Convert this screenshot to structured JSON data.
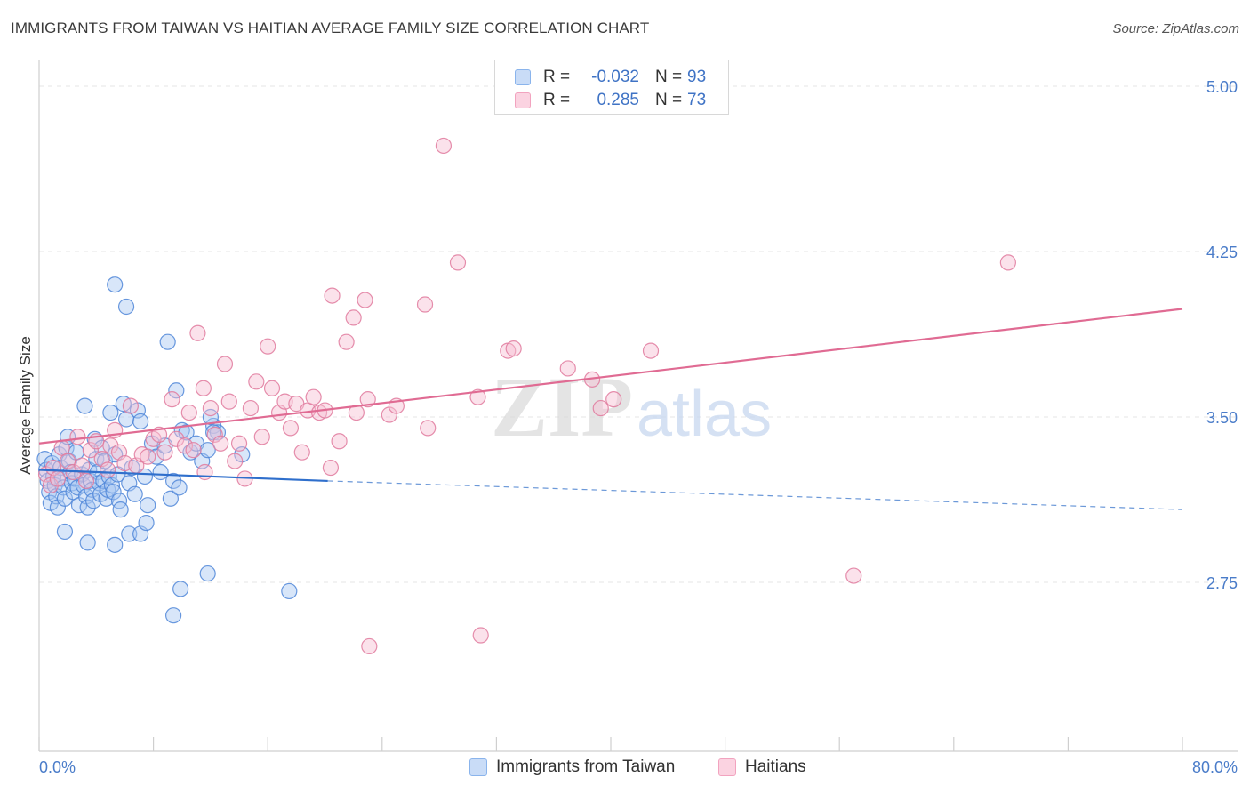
{
  "title": "IMMIGRANTS FROM TAIWAN VS HAITIAN AVERAGE FAMILY SIZE CORRELATION CHART",
  "source": "Source: ZipAtlas.com",
  "watermark": {
    "zip": "ZIP",
    "atlas": "atlas"
  },
  "legend": {
    "r_label": "R =",
    "n_label": "N =",
    "rows": [
      {
        "r": "-0.032",
        "n": "93",
        "color": "#8ab4ec",
        "fill": "#c9dcf7"
      },
      {
        "r": "0.285",
        "n": "73",
        "color": "#f2a3bf",
        "fill": "#fbd3e1"
      }
    ]
  },
  "bottom_legend": [
    {
      "label": "Immigrants from Taiwan",
      "color": "#8ab4ec",
      "fill": "#c9dcf7"
    },
    {
      "label": "Haitians",
      "color": "#f2a3bf",
      "fill": "#fbd3e1"
    }
  ],
  "chart_data": {
    "type": "scatter",
    "title": "IMMIGRANTS FROM TAIWAN VS HAITIAN AVERAGE FAMILY SIZE CORRELATION CHART",
    "xlabel": "",
    "ylabel": "Average Family Size",
    "xlim": [
      0,
      80
    ],
    "ylim": [
      2.2,
      5.1
    ],
    "x_tick_labels": [
      "0.0%",
      "80.0%"
    ],
    "y_ticks": [
      2.75,
      3.5,
      4.25,
      5.0
    ],
    "y_tick_labels": [
      "2.75",
      "3.50",
      "4.25",
      "5.00"
    ],
    "grid": true,
    "legend_placement": "top-center",
    "series": [
      {
        "name": "Immigrants from Taiwan",
        "color": "#4f86d8",
        "fill": "#a9c8f2",
        "trend": {
          "x": [
            0,
            20.2
          ],
          "y": [
            3.26,
            3.21
          ],
          "dashed_to": [
            80,
            3.08
          ]
        },
        "points": [
          [
            0.4,
            3.31
          ],
          [
            0.5,
            3.26
          ],
          [
            0.6,
            3.21
          ],
          [
            0.7,
            3.16
          ],
          [
            0.8,
            3.11
          ],
          [
            0.9,
            3.29
          ],
          [
            1.0,
            3.23
          ],
          [
            1.1,
            3.19
          ],
          [
            1.2,
            3.14
          ],
          [
            1.3,
            3.09
          ],
          [
            1.4,
            3.33
          ],
          [
            1.5,
            3.27
          ],
          [
            1.6,
            3.22
          ],
          [
            1.7,
            3.18
          ],
          [
            1.8,
            3.13
          ],
          [
            1.9,
            3.36
          ],
          [
            2.0,
            3.41
          ],
          [
            2.1,
            3.3
          ],
          [
            2.2,
            3.25
          ],
          [
            2.3,
            3.2
          ],
          [
            2.4,
            3.16
          ],
          [
            2.5,
            3.22
          ],
          [
            2.6,
            3.34
          ],
          [
            2.7,
            3.18
          ],
          [
            2.8,
            3.1
          ],
          [
            3.0,
            3.24
          ],
          [
            3.1,
            3.19
          ],
          [
            3.2,
            3.55
          ],
          [
            3.3,
            3.14
          ],
          [
            3.4,
            3.09
          ],
          [
            3.5,
            3.26
          ],
          [
            3.6,
            3.21
          ],
          [
            3.7,
            3.17
          ],
          [
            3.8,
            3.12
          ],
          [
            3.9,
            3.4
          ],
          [
            4.0,
            3.31
          ],
          [
            4.1,
            3.25
          ],
          [
            4.2,
            3.2
          ],
          [
            4.3,
            3.15
          ],
          [
            4.4,
            3.36
          ],
          [
            4.5,
            3.21
          ],
          [
            4.6,
            3.3
          ],
          [
            4.7,
            3.13
          ],
          [
            4.8,
            3.17
          ],
          [
            4.9,
            3.23
          ],
          [
            5.0,
            3.52
          ],
          [
            5.1,
            3.19
          ],
          [
            5.2,
            3.16
          ],
          [
            5.3,
            3.33
          ],
          [
            5.5,
            3.24
          ],
          [
            5.6,
            3.12
          ],
          [
            5.7,
            3.08
          ],
          [
            5.9,
            3.56
          ],
          [
            6.1,
            3.49
          ],
          [
            6.3,
            3.2
          ],
          [
            6.5,
            3.27
          ],
          [
            6.7,
            3.15
          ],
          [
            6.9,
            3.53
          ],
          [
            7.1,
            3.48
          ],
          [
            7.4,
            3.23
          ],
          [
            7.6,
            3.1
          ],
          [
            7.9,
            3.38
          ],
          [
            8.2,
            3.32
          ],
          [
            8.5,
            3.25
          ],
          [
            8.8,
            3.37
          ],
          [
            9.0,
            3.84
          ],
          [
            9.2,
            3.13
          ],
          [
            9.4,
            3.21
          ],
          [
            9.6,
            3.62
          ],
          [
            9.8,
            3.18
          ],
          [
            10.0,
            3.44
          ],
          [
            10.3,
            3.43
          ],
          [
            10.6,
            3.34
          ],
          [
            11.0,
            3.38
          ],
          [
            11.4,
            3.3
          ],
          [
            11.8,
            3.35
          ],
          [
            12.2,
            3.46
          ],
          [
            12.5,
            3.43
          ],
          [
            6.1,
            4.0
          ],
          [
            5.3,
            4.1
          ],
          [
            1.8,
            2.98
          ],
          [
            3.4,
            2.93
          ],
          [
            5.3,
            2.92
          ],
          [
            6.3,
            2.97
          ],
          [
            7.1,
            2.97
          ],
          [
            9.4,
            2.6
          ],
          [
            9.9,
            2.72
          ],
          [
            11.8,
            2.79
          ],
          [
            17.5,
            2.71
          ],
          [
            12.0,
            3.5
          ],
          [
            12.2,
            3.43
          ],
          [
            14.2,
            3.33
          ],
          [
            7.5,
            3.02
          ]
        ]
      },
      {
        "name": "Haitians",
        "color": "#e07a9d",
        "fill": "#f7bfd3",
        "trend": {
          "x": [
            0,
            80
          ],
          "y": [
            3.38,
            3.99
          ]
        },
        "points": [
          [
            0.5,
            3.24
          ],
          [
            0.8,
            3.19
          ],
          [
            1.0,
            3.27
          ],
          [
            1.3,
            3.22
          ],
          [
            1.6,
            3.36
          ],
          [
            2.0,
            3.3
          ],
          [
            2.4,
            3.25
          ],
          [
            2.7,
            3.41
          ],
          [
            3.0,
            3.28
          ],
          [
            3.3,
            3.21
          ],
          [
            3.6,
            3.35
          ],
          [
            4.0,
            3.39
          ],
          [
            4.4,
            3.31
          ],
          [
            4.8,
            3.26
          ],
          [
            5.0,
            3.37
          ],
          [
            5.3,
            3.44
          ],
          [
            5.6,
            3.34
          ],
          [
            6.0,
            3.29
          ],
          [
            6.4,
            3.55
          ],
          [
            6.8,
            3.28
          ],
          [
            7.2,
            3.33
          ],
          [
            7.6,
            3.32
          ],
          [
            8.0,
            3.4
          ],
          [
            8.4,
            3.42
          ],
          [
            8.8,
            3.34
          ],
          [
            9.3,
            3.58
          ],
          [
            9.6,
            3.4
          ],
          [
            10.2,
            3.37
          ],
          [
            10.5,
            3.52
          ],
          [
            10.8,
            3.35
          ],
          [
            11.1,
            3.88
          ],
          [
            11.5,
            3.63
          ],
          [
            12.0,
            3.54
          ],
          [
            12.3,
            3.42
          ],
          [
            12.7,
            3.38
          ],
          [
            13.0,
            3.74
          ],
          [
            13.3,
            3.57
          ],
          [
            13.7,
            3.3
          ],
          [
            14.0,
            3.38
          ],
          [
            14.4,
            3.22
          ],
          [
            14.8,
            3.54
          ],
          [
            15.2,
            3.66
          ],
          [
            15.6,
            3.41
          ],
          [
            16.0,
            3.82
          ],
          [
            16.3,
            3.63
          ],
          [
            16.8,
            3.52
          ],
          [
            17.2,
            3.57
          ],
          [
            17.6,
            3.45
          ],
          [
            18.0,
            3.56
          ],
          [
            18.4,
            3.34
          ],
          [
            18.8,
            3.53
          ],
          [
            19.2,
            3.59
          ],
          [
            19.6,
            3.52
          ],
          [
            20.0,
            3.53
          ],
          [
            20.4,
            3.27
          ],
          [
            21.0,
            3.39
          ],
          [
            21.5,
            3.84
          ],
          [
            22.2,
            3.52
          ],
          [
            23.0,
            3.58
          ],
          [
            24.5,
            3.51
          ],
          [
            25.0,
            3.55
          ],
          [
            27.2,
            3.45
          ],
          [
            30.7,
            3.59
          ],
          [
            32.8,
            3.8
          ],
          [
            33.2,
            3.81
          ],
          [
            37.0,
            3.72
          ],
          [
            38.7,
            3.67
          ],
          [
            39.3,
            3.54
          ],
          [
            40.2,
            3.58
          ],
          [
            22.0,
            3.95
          ],
          [
            20.5,
            4.05
          ],
          [
            22.8,
            4.03
          ],
          [
            28.3,
            4.73
          ]
        ],
        "extra_points": [
          [
            29.3,
            4.2
          ],
          [
            67.8,
            4.2
          ],
          [
            42.8,
            3.8
          ],
          [
            57.0,
            2.78
          ],
          [
            23.1,
            2.46
          ],
          [
            30.9,
            2.51
          ],
          [
            27.0,
            4.01
          ],
          [
            11.6,
            3.25
          ]
        ]
      }
    ]
  }
}
